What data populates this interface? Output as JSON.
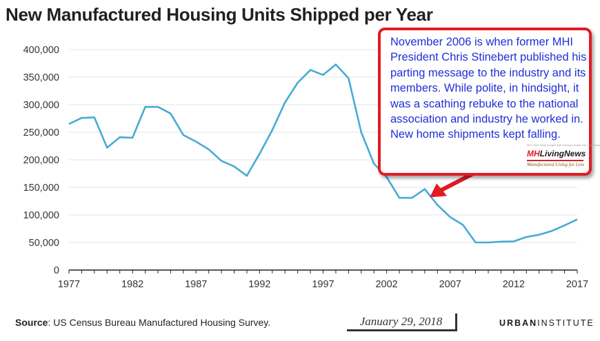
{
  "title": "New Manufactured Housing Units Shipped per Year",
  "callout": {
    "text": "November 2006 is when former MHI President Chris Stinebert published his parting message to the industry and its members. While polite, in hindsight, it was a scathing rebuke to the national association and industry he worked in. New home shipments kept falling.",
    "logo": {
      "fine_print": "MHI Third Party Images with Answers Under Fair Use Guidelines",
      "name_mh": "MH",
      "name_rest": "LivingNews",
      "tagline": "Manufactured Living for Less"
    },
    "arrow_target_year": 2005.5,
    "colors": {
      "border": "#e21b22",
      "text": "#1f2fd6"
    }
  },
  "footer": {
    "source_label": "Source",
    "source_text": ": US Census Bureau Manufactured Housing Survey.",
    "date": "January 29, 2018",
    "brand_bold": "URBAN",
    "brand_rest": "INSTITUTE"
  },
  "chart_data": {
    "type": "line",
    "title": "New Manufactured Housing Units Shipped per Year",
    "xlabel": "",
    "ylabel": "",
    "xlim": [
      1977,
      2017
    ],
    "ylim": [
      0,
      400000
    ],
    "x_ticks": [
      1977,
      1982,
      1987,
      1992,
      1997,
      2002,
      2007,
      2012,
      2017
    ],
    "y_ticks": [
      0,
      50000,
      100000,
      150000,
      200000,
      250000,
      300000,
      350000,
      400000
    ],
    "x_tick_labels": [
      "1977",
      "1982",
      "1987",
      "1992",
      "1997",
      "2002",
      "2007",
      "2012",
      "2017"
    ],
    "y_tick_labels": [
      "0",
      "50,000",
      "100,000",
      "150,000",
      "200,000",
      "250,000",
      "300,000",
      "350,000",
      "400,000"
    ],
    "grid": "horizontal",
    "line_color": "#46abd4",
    "series": [
      {
        "x": [
          1977,
          1978,
          1979,
          1980,
          1981,
          1982,
          1983,
          1984,
          1985,
          1986,
          1987,
          1988,
          1989,
          1990,
          1991,
          1992,
          1993,
          1994,
          1995,
          1996,
          1997,
          1998,
          1999,
          2000,
          2001,
          2002,
          2003,
          2004,
          2005,
          2006,
          2007,
          2008,
          2009,
          2010,
          2011,
          2012,
          2013,
          2014,
          2015,
          2016,
          2017
        ],
        "values": [
          265000,
          276000,
          277000,
          222000,
          241000,
          240000,
          296000,
          296000,
          284000,
          245000,
          233000,
          219000,
          198000,
          188000,
          171000,
          211000,
          254000,
          304000,
          340000,
          363000,
          354000,
          373000,
          348000,
          250000,
          193000,
          169000,
          131000,
          131000,
          147000,
          118000,
          96000,
          82000,
          50000,
          50000,
          51500,
          52000,
          60000,
          64000,
          71000,
          81000,
          92000
        ]
      }
    ]
  }
}
